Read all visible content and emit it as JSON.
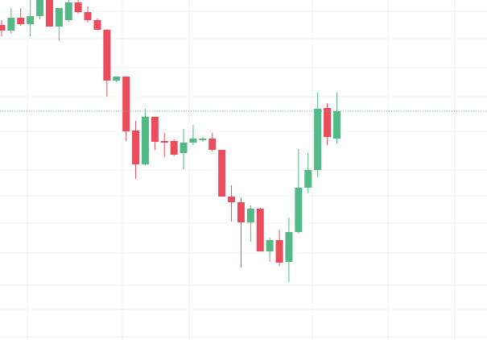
{
  "chart_data": {
    "type": "candlestick",
    "categories": [
      null,
      null,
      null,
      null,
      null,
      null,
      null,
      null,
      null,
      null,
      null,
      null,
      null,
      null,
      null,
      null,
      null,
      null,
      null,
      null,
      null,
      null,
      null,
      null,
      null,
      null,
      null,
      null,
      null,
      null,
      null,
      null,
      null,
      null,
      null,
      null
    ],
    "open": [
      391,
      384,
      400,
      392,
      402,
      428,
      389,
      397,
      419,
      407,
      397,
      385,
      322,
      327,
      260,
      218,
      277,
      247,
      247,
      232,
      245,
      248,
      250,
      236,
      178,
      171,
      146,
      163,
      110,
      124,
      97,
      134,
      189,
      211,
      288,
      250
    ],
    "high": [
      397,
      412,
      412,
      422,
      432,
      432,
      412,
      422,
      422,
      414,
      399,
      386,
      327,
      327,
      272,
      287,
      277,
      257,
      249,
      262,
      267,
      252,
      257,
      236,
      192,
      177,
      167,
      164,
      127,
      137,
      152,
      237,
      232,
      307,
      294,
      307
    ],
    "low": [
      377,
      380,
      390,
      377,
      398,
      389,
      372,
      395,
      405,
      394,
      385,
      302,
      320,
      247,
      200,
      217,
      236,
      227,
      228,
      212,
      242,
      246,
      234,
      178,
      147,
      90,
      122,
      110,
      97,
      92,
      72,
      132,
      182,
      202,
      242,
      244
    ],
    "close": [
      384,
      400,
      392,
      402,
      428,
      389,
      412,
      419,
      407,
      397,
      385,
      322,
      327,
      259,
      218,
      277,
      246,
      245,
      230,
      245,
      250,
      250,
      236,
      178,
      171,
      146,
      163,
      110,
      124,
      96,
      134,
      189,
      211,
      287,
      252,
      284
    ],
    "up_color": "#53b987",
    "down_color": "#eb4d5c",
    "last_price": 284,
    "last_price_color": "#53b987",
    "ylim": [
      0,
      422
    ],
    "yticks": [
      408,
      374,
      338,
      302,
      259,
      211,
      179,
      145,
      108,
      68,
      38,
      4
    ],
    "grid": true
  }
}
